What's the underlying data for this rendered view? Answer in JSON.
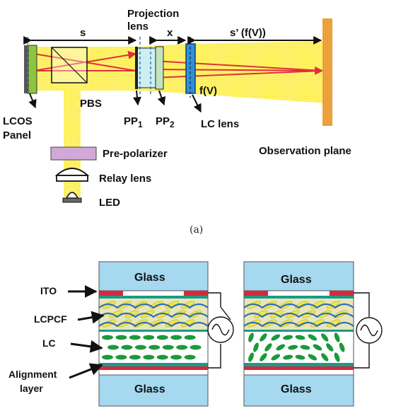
{
  "top": {
    "labels": {
      "s": "s",
      "projection_lens": [
        "Projection",
        "lens"
      ],
      "x": "x",
      "s_prime": "s’ (f(V))",
      "fv": "f(V)",
      "lcos": [
        "LCOS",
        "Panel"
      ],
      "pbs": "PBS",
      "pp1": "PP",
      "pp1_sub": "1",
      "pp2": "PP",
      "pp2_sub": "2",
      "lc_lens": "LC lens",
      "observation_plane": "Observation plane",
      "pre_polarizer": "Pre-polarizer",
      "relay_lens": "Relay lens",
      "led": "LED"
    },
    "caption": "(a)"
  },
  "bottom": {
    "labels": {
      "ito": "ITO",
      "lcpcf": "LCPCF",
      "lc": "LC",
      "alignment": [
        "Alignment",
        "layer"
      ]
    },
    "glass": "Glass"
  },
  "colors": {
    "beam": "#fff36b",
    "ray": "#e0303a",
    "glass": "#a6d8f0",
    "ito": "#d42a3a",
    "lc": "#1a9a3a",
    "lcpcf_fill": "#e8e6b8",
    "lcpcf_ellipse": "#f0e84a",
    "polymer": "#2b6fb5",
    "pre_polarizer": "#d2a8d8",
    "lcos": "#8cc63f",
    "obs": "#f0a540"
  }
}
